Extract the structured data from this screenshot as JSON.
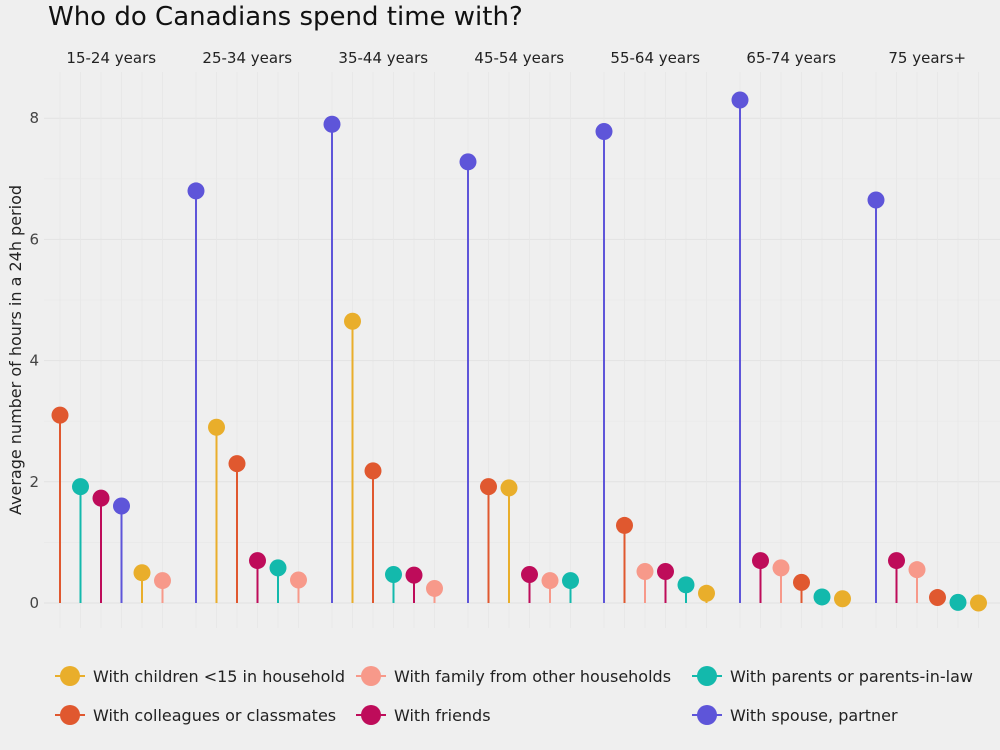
{
  "chart_data": {
    "type": "lollipop",
    "title": "Who do Canadians spend time with?",
    "xlabel": "",
    "ylabel": "Average number of hours in a 24h period",
    "ylim": [
      0,
      8.8
    ],
    "yticks": [
      0,
      2,
      4,
      6,
      8
    ],
    "grid": true,
    "legend_position": "bottom",
    "series": [
      {
        "key": "children",
        "name": "With children <15 in household",
        "color": "#E9AE2B"
      },
      {
        "key": "colleagues",
        "name": "With colleagues or classmates",
        "color": "#E0582F"
      },
      {
        "key": "family",
        "name": "With family from other households",
        "color": "#F7998A"
      },
      {
        "key": "friends",
        "name": "With friends",
        "color": "#BE0C5A"
      },
      {
        "key": "parents",
        "name": "With parents or parents-in-law",
        "color": "#13B9AC"
      },
      {
        "key": "spouse",
        "name": "With spouse, partner",
        "color": "#5E55D9"
      }
    ],
    "panels": [
      {
        "label": "15-24 years",
        "points": [
          {
            "series": "colleagues",
            "value": 3.1
          },
          {
            "series": "parents",
            "value": 1.92
          },
          {
            "series": "friends",
            "value": 1.73
          },
          {
            "series": "spouse",
            "value": 1.6
          },
          {
            "series": "children",
            "value": 0.5
          },
          {
            "series": "family",
            "value": 0.37
          }
        ]
      },
      {
        "label": "25-34 years",
        "points": [
          {
            "series": "spouse",
            "value": 6.8
          },
          {
            "series": "children",
            "value": 2.9
          },
          {
            "series": "colleagues",
            "value": 2.3
          },
          {
            "series": "friends",
            "value": 0.7
          },
          {
            "series": "parents",
            "value": 0.58
          },
          {
            "series": "family",
            "value": 0.38
          }
        ]
      },
      {
        "label": "35-44 years",
        "points": [
          {
            "series": "spouse",
            "value": 7.9
          },
          {
            "series": "children",
            "value": 4.65
          },
          {
            "series": "colleagues",
            "value": 2.18
          },
          {
            "series": "parents",
            "value": 0.47
          },
          {
            "series": "friends",
            "value": 0.46
          },
          {
            "series": "family",
            "value": 0.24
          }
        ]
      },
      {
        "label": "45-54 years",
        "points": [
          {
            "series": "spouse",
            "value": 7.28
          },
          {
            "series": "colleagues",
            "value": 1.92
          },
          {
            "series": "children",
            "value": 1.9
          },
          {
            "series": "friends",
            "value": 0.47
          },
          {
            "series": "family",
            "value": 0.37
          },
          {
            "series": "parents",
            "value": 0.37
          }
        ]
      },
      {
        "label": "55-64 years",
        "points": [
          {
            "series": "spouse",
            "value": 7.78
          },
          {
            "series": "colleagues",
            "value": 1.28
          },
          {
            "series": "family",
            "value": 0.52
          },
          {
            "series": "friends",
            "value": 0.52
          },
          {
            "series": "parents",
            "value": 0.3
          },
          {
            "series": "children",
            "value": 0.16
          }
        ]
      },
      {
        "label": "65-74 years",
        "points": [
          {
            "series": "spouse",
            "value": 8.3
          },
          {
            "series": "friends",
            "value": 0.7
          },
          {
            "series": "family",
            "value": 0.58
          },
          {
            "series": "colleagues",
            "value": 0.34
          },
          {
            "series": "parents",
            "value": 0.1
          },
          {
            "series": "children",
            "value": 0.07
          }
        ]
      },
      {
        "label": "75 years+",
        "points": [
          {
            "series": "spouse",
            "value": 6.65
          },
          {
            "series": "friends",
            "value": 0.7
          },
          {
            "series": "family",
            "value": 0.55
          },
          {
            "series": "colleagues",
            "value": 0.09
          },
          {
            "series": "parents",
            "value": 0.01
          },
          {
            "series": "children",
            "value": 0.0
          }
        ]
      }
    ]
  }
}
